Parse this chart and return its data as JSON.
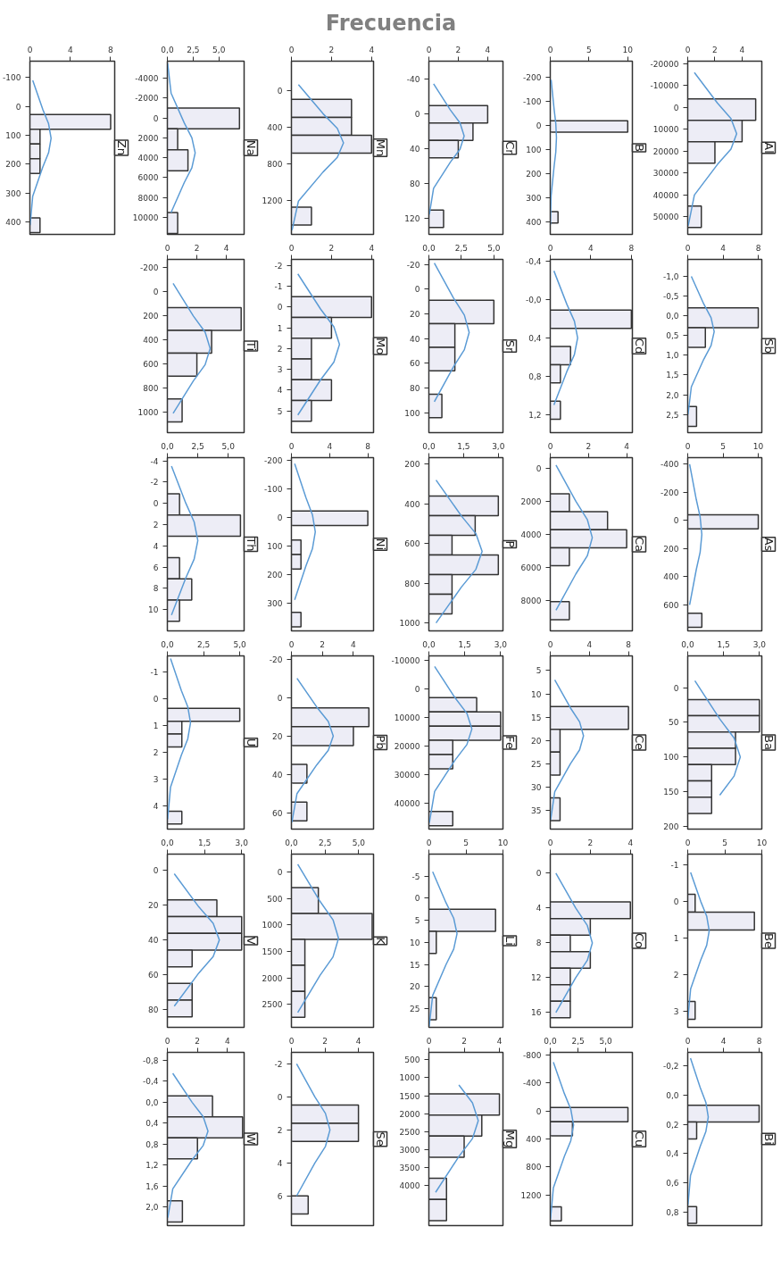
{
  "chart_data": [
    {
      "type": "other",
      "title": "Frecuencia"
    },
    {
      "type": "histogram",
      "orientation": "horizontal",
      "title": "Zn",
      "color": "#ededf6",
      "bins": [
        28,
        79,
        130,
        181,
        232,
        283,
        334,
        385,
        436
      ],
      "values": [
        8,
        1,
        1,
        1,
        0,
        0,
        0,
        1
      ],
      "xlim": [
        0,
        8.4
      ],
      "xticks": [
        0,
        4,
        8
      ],
      "ylim": [
        442,
        -156
      ],
      "yticks": [
        -100,
        0,
        100,
        200,
        300,
        400
      ],
      "series": [
        {
          "type": "line",
          "color": "#5b9bd5",
          "x": [
            -90,
            10,
            60,
            110,
            160,
            210,
            310,
            410
          ],
          "values": [
            0.28,
            1.27,
            1.85,
            2.1,
            1.85,
            1.27,
            0.28,
            0.02
          ]
        }
      ]
    },
    {
      "type": "histogram",
      "orientation": "horizontal",
      "title": "Na",
      "color": "#ededf6",
      "bins": [
        -1000,
        1100,
        3200,
        5300,
        7400,
        9500,
        11600
      ],
      "values": [
        7,
        1,
        2,
        0,
        0,
        1
      ],
      "xlim": [
        0,
        7.45
      ],
      "xticks": [
        {
          "value": 0,
          "label": "0,0"
        },
        {
          "value": 2.5,
          "label": "2,5"
        },
        {
          "value": 5,
          "label": "5,0"
        }
      ],
      "ylim": [
        11700,
        -5700
      ],
      "yticks": [
        -4000,
        -2000,
        0,
        2000,
        4000,
        6000,
        8000,
        10000
      ],
      "series": [
        {
          "type": "line",
          "color": "#5b9bd5",
          "x": [
            -5500,
            -2500,
            500,
            2000,
            3500,
            5000,
            6500,
            9500
          ],
          "values": [
            0.03,
            0.36,
            1.64,
            2.38,
            2.7,
            2.38,
            1.64,
            0.36
          ]
        }
      ]
    },
    {
      "type": "histogram",
      "orientation": "horizontal",
      "title": "Mn",
      "color": "#ededf6",
      "bins": [
        93,
        290,
        487,
        684,
        881,
        1078,
        1275,
        1472
      ],
      "values": [
        3,
        3,
        4,
        0,
        0,
        0,
        1
      ],
      "xlim": [
        0,
        4.1
      ],
      "xticks": [
        0,
        2,
        4
      ],
      "ylim": [
        1575,
        -327
      ],
      "yticks": [
        0,
        400,
        800,
        1200
      ],
      "series": [
        {
          "type": "line",
          "color": "#5b9bd5",
          "x": [
            -70,
            250,
            410,
            570,
            730,
            890,
            1210,
            1530
          ],
          "values": [
            0.35,
            1.58,
            2.29,
            2.6,
            2.29,
            1.58,
            0.35,
            0.03
          ]
        }
      ]
    },
    {
      "type": "histogram",
      "orientation": "horizontal",
      "title": "Cr",
      "color": "#ededf6",
      "bins": [
        -10,
        10,
        30,
        50,
        70,
        90,
        110,
        130
      ],
      "values": [
        4,
        3,
        2,
        0,
        0,
        0,
        1
      ],
      "xlim": [
        0,
        5.04
      ],
      "xticks": [
        0,
        2,
        4
      ],
      "ylim": [
        138,
        -61
      ],
      "yticks": [
        -40,
        0,
        40,
        80,
        120
      ],
      "series": [
        {
          "type": "line",
          "color": "#5b9bd5",
          "x": [
            -35,
            -5,
            10,
            25,
            40,
            55,
            85,
            115
          ],
          "values": [
            0.32,
            1.46,
            2.12,
            2.4,
            2.12,
            1.46,
            0.32,
            0.03
          ]
        }
      ]
    },
    {
      "type": "histogram",
      "orientation": "horizontal",
      "title": "B",
      "color": "#ededf6",
      "bins": [
        -20,
        27,
        74,
        121,
        168,
        215,
        262,
        309,
        356,
        403
      ],
      "values": [
        10,
        0,
        0,
        0,
        0,
        0,
        0,
        0,
        1
      ],
      "xlim": [
        0,
        10.6
      ],
      "xticks": [
        0,
        5,
        10
      ],
      "ylim": [
        450,
        -267
      ],
      "yticks": [
        -200,
        -100,
        0,
        100,
        200,
        300,
        400
      ],
      "series": [
        {
          "type": "line",
          "color": "#5b9bd5",
          "x": [
            -190,
            -70,
            -10,
            50,
            110,
            170,
            290,
            410
          ],
          "values": [
            0.11,
            0.49,
            0.71,
            0.8,
            0.71,
            0.49,
            0.11,
            0.01
          ]
        }
      ]
    },
    {
      "type": "histogram",
      "orientation": "horizontal",
      "title": "Al",
      "color": "#ededf6",
      "bins": [
        -4000,
        5800,
        15600,
        25400,
        35200,
        45000,
        54800
      ],
      "values": [
        5,
        4,
        2,
        0,
        0,
        1
      ],
      "xlim": [
        0,
        5.45
      ],
      "xticks": [
        0,
        2,
        4
      ],
      "ylim": [
        58000,
        -21200
      ],
      "yticks": [
        -20000,
        -10000,
        0,
        10000,
        20000,
        30000,
        40000,
        50000
      ],
      "series": [
        {
          "type": "line",
          "color": "#5b9bd5",
          "x": [
            -16000,
            -2000,
            5000,
            12000,
            19000,
            26000,
            40000,
            54000
          ],
          "values": [
            0.49,
            2.19,
            3.18,
            3.6,
            3.18,
            2.19,
            0.49,
            0.04
          ]
        }
      ]
    },
    {
      "type": "histogram",
      "orientation": "horizontal",
      "title": "Ti",
      "color": "#ededf6",
      "bins": [
        130,
        320,
        510,
        700,
        890,
        1080
      ],
      "values": [
        5,
        3,
        2,
        0,
        1
      ],
      "xlim": [
        0,
        5.2
      ],
      "xticks": [
        0,
        2,
        4
      ],
      "ylim": [
        1170,
        -270
      ],
      "yticks": [
        -200,
        0,
        200,
        400,
        600,
        800,
        1000
      ],
      "series": [
        {
          "type": "line",
          "color": "#5b9bd5",
          "x": [
            -70,
            200,
            335,
            470,
            605,
            740,
            1010
          ],
          "values": [
            0.39,
            1.76,
            2.56,
            2.9,
            2.56,
            1.76,
            0.39
          ]
        }
      ]
    },
    {
      "type": "histogram",
      "orientation": "horizontal",
      "title": "Mo",
      "color": "#ededf6",
      "bins": [
        -0.5,
        0.5,
        1.5,
        2.5,
        3.5,
        4.5,
        5.5
      ],
      "values": [
        4,
        2,
        1,
        1,
        2,
        1
      ],
      "xlim": [
        0,
        4.1
      ],
      "xticks": [
        0,
        2,
        4
      ],
      "ylim": [
        6.05,
        -2.3
      ],
      "yticks": [
        -2,
        -1,
        0,
        1,
        2,
        3,
        4,
        5
      ],
      "series": [
        {
          "type": "line",
          "color": "#5b9bd5",
          "x": [
            -1.6,
            0.1,
            0.95,
            1.8,
            2.65,
            3.5,
            5.2
          ],
          "values": [
            0.32,
            1.46,
            2.12,
            2.4,
            2.12,
            1.46,
            0.32
          ]
        }
      ]
    },
    {
      "type": "histogram",
      "orientation": "horizontal",
      "title": "Sr",
      "color": "#ededf6",
      "bins": [
        9,
        28,
        47,
        66,
        85,
        104
      ],
      "values": [
        5,
        2,
        2,
        0,
        1
      ],
      "xlim": [
        0,
        5.7
      ],
      "xticks": [
        {
          "value": 0,
          "label": "0,0"
        },
        {
          "value": 2.5,
          "label": "2,5"
        },
        {
          "value": 5,
          "label": "5,0"
        }
      ],
      "ylim": [
        116,
        -24
      ],
      "yticks": [
        -20,
        0,
        20,
        40,
        60,
        80,
        100
      ],
      "series": [
        {
          "type": "line",
          "color": "#5b9bd5",
          "x": [
            -21,
            7,
            21,
            35,
            49,
            63,
            91
          ],
          "values": [
            0.42,
            1.88,
            2.73,
            3.1,
            2.73,
            1.88,
            0.42
          ]
        }
      ]
    },
    {
      "type": "histogram",
      "orientation": "horizontal",
      "title": "Cd",
      "color": "#ededf6",
      "bins": [
        0.11,
        0.3,
        0.49,
        0.68,
        0.87,
        1.06,
        1.25
      ],
      "values": [
        8,
        0,
        2,
        1,
        0,
        1
      ],
      "xlim": [
        0,
        8.1
      ],
      "xticks": [
        0,
        4,
        8
      ],
      "ylim": [
        1.39,
        -0.42
      ],
      "yticks": [
        {
          "value": -0.4,
          "label": "-0,4"
        },
        {
          "value": 0,
          "label": "-0,0"
        },
        {
          "value": 0.4,
          "label": "0,4"
        },
        {
          "value": 0.8,
          "label": "0,8"
        },
        {
          "value": 1.2,
          "label": "1,2"
        }
      ],
      "series": [
        {
          "type": "line",
          "color": "#5b9bd5",
          "x": [
            -0.3,
            0.05,
            0.225,
            0.4,
            0.575,
            0.75,
            1.1
          ],
          "values": [
            0.36,
            1.64,
            2.38,
            2.7,
            2.38,
            1.64,
            0.36
          ]
        }
      ]
    },
    {
      "type": "histogram",
      "orientation": "horizontal",
      "title": "Sb",
      "color": "#ededf6",
      "bins": [
        -0.2,
        0.3,
        0.8,
        1.3,
        1.8,
        2.3,
        2.8
      ],
      "values": [
        8,
        2,
        0,
        0,
        0,
        1
      ],
      "xlim": [
        0,
        8.4
      ],
      "xticks": [
        0,
        4,
        8
      ],
      "ylim": [
        2.96,
        -1.43
      ],
      "yticks": [
        {
          "value": -1,
          "label": "-1,0"
        },
        {
          "value": -0.5,
          "label": "-0,5"
        },
        {
          "value": 0,
          "label": "0,0"
        },
        {
          "value": 0.5,
          "label": "0,5"
        },
        {
          "value": 1,
          "label": "1,0"
        },
        {
          "value": 1.5,
          "label": "1,5"
        },
        {
          "value": 2,
          "label": "2,0"
        },
        {
          "value": 2.5,
          "label": "2,5"
        }
      ],
      "series": [
        {
          "type": "line",
          "color": "#5b9bd5",
          "x": [
            -1.0,
            -0.3,
            0.05,
            0.4,
            0.75,
            1.1,
            1.8,
            2.5
          ],
          "values": [
            0.41,
            1.82,
            2.65,
            3,
            2.65,
            1.82,
            0.41,
            0.03
          ]
        }
      ]
    },
    {
      "type": "histogram",
      "orientation": "horizontal",
      "title": "Th",
      "color": "#ededf6",
      "bins": [
        -0.9,
        1.1,
        3.1,
        5.1,
        7.1,
        9.1,
        11.1
      ],
      "values": [
        1,
        6,
        0,
        1,
        2,
        1
      ],
      "xlim": [
        0,
        6.3
      ],
      "xticks": [
        {
          "value": 0,
          "label": "0,0"
        },
        {
          "value": 2.5,
          "label": "2,5"
        },
        {
          "value": 5,
          "label": "5,0"
        }
      ],
      "ylim": [
        12,
        -4.3
      ],
      "yticks": [
        -4,
        -2,
        0,
        2,
        4,
        6,
        8,
        10
      ],
      "series": [
        {
          "type": "line",
          "color": "#5b9bd5",
          "x": [
            -3.5,
            0,
            1.75,
            3.5,
            5.25,
            7,
            10.5
          ],
          "values": [
            0.34,
            1.52,
            2.2,
            2.5,
            2.2,
            1.52,
            0.34
          ]
        }
      ]
    },
    {
      "type": "histogram",
      "orientation": "horizontal",
      "title": "Ni",
      "color": "#ededf6",
      "bins": [
        -23,
        28,
        79,
        130,
        181,
        232,
        283,
        334,
        385
      ],
      "values": [
        8,
        0,
        1,
        1,
        0,
        0,
        0,
        1
      ],
      "xlim": [
        0,
        8.6
      ],
      "xticks": [
        0,
        4,
        8
      ],
      "ylim": [
        399,
        -211
      ],
      "yticks": [
        -200,
        -100,
        0,
        100,
        200,
        300
      ],
      "series": [
        {
          "type": "line",
          "color": "#5b9bd5",
          "x": [
            -190,
            -70,
            -10,
            50,
            110,
            170,
            290
          ],
          "values": [
            0.34,
            1.52,
            2.2,
            2.5,
            2.2,
            1.52,
            0.34
          ]
        }
      ]
    },
    {
      "type": "histogram",
      "orientation": "horizontal",
      "title": "P",
      "color": "#ededf6",
      "bins": [
        360,
        459,
        558,
        657,
        756,
        855,
        954
      ],
      "values": [
        3,
        2,
        1,
        3,
        1,
        1
      ],
      "xlim": [
        0,
        3.2
      ],
      "xticks": [
        {
          "value": 0,
          "label": "0,0"
        },
        {
          "value": 1.5,
          "label": "1,5"
        },
        {
          "value": 3,
          "label": "3,0"
        }
      ],
      "ylim": [
        1040,
        167
      ],
      "yticks": [
        200,
        400,
        600,
        800,
        1000
      ],
      "series": [
        {
          "type": "line",
          "color": "#5b9bd5",
          "x": [
            280,
            460,
            550,
            640,
            730,
            820,
            1000
          ],
          "values": [
            0.31,
            1.4,
            2.03,
            2.3,
            2.03,
            1.4,
            0.31
          ]
        }
      ]
    },
    {
      "type": "histogram",
      "orientation": "horizontal",
      "title": "Ca",
      "color": "#ededf6",
      "bins": [
        1540,
        2630,
        3720,
        4810,
        5900,
        6990,
        8080,
        9170
      ],
      "values": [
        1,
        3,
        4,
        1,
        0,
        0,
        1
      ],
      "xlim": [
        0,
        4.3
      ],
      "xticks": [
        0,
        2,
        4
      ],
      "ylim": [
        9850,
        -650
      ],
      "yticks": [
        0,
        2000,
        4000,
        6000,
        8000
      ],
      "series": [
        {
          "type": "line",
          "color": "#5b9bd5",
          "x": [
            -200,
            2000,
            3100,
            4200,
            5300,
            6400,
            8600
          ],
          "values": [
            0.3,
            1.34,
            1.94,
            2.2,
            1.94,
            1.34,
            0.3
          ]
        }
      ]
    },
    {
      "type": "histogram",
      "orientation": "horizontal",
      "title": "As",
      "color": "#ededf6",
      "bins": [
        -40,
        60,
        160,
        260,
        360,
        460,
        560,
        660,
        760
      ],
      "values": [
        10,
        0,
        0,
        0,
        0,
        0,
        0,
        2
      ],
      "xlim": [
        0,
        10.5
      ],
      "xticks": [
        0,
        5,
        10
      ],
      "ylim": [
        785,
        -447
      ],
      "yticks": [
        -400,
        -200,
        0,
        200,
        400,
        600
      ],
      "series": [
        {
          "type": "line",
          "color": "#5b9bd5",
          "x": [
            -400,
            -150,
            -25,
            100,
            225,
            350,
            600
          ],
          "values": [
            0.27,
            1.21,
            1.76,
            2,
            1.76,
            1.21,
            0.27
          ]
        }
      ]
    },
    {
      "type": "histogram",
      "orientation": "horizontal",
      "title": "U",
      "color": "#ededf6",
      "bins": [
        0.36,
        0.84,
        1.32,
        1.8,
        2.28,
        2.76,
        3.24,
        3.72,
        4.2,
        4.68
      ],
      "values": [
        5,
        1,
        1,
        0,
        0,
        0,
        0,
        0,
        1
      ],
      "xlim": [
        0,
        5.3
      ],
      "xticks": [
        {
          "value": 0,
          "label": "0,0"
        },
        {
          "value": 2.5,
          "label": "2,5"
        },
        {
          "value": 5,
          "label": "5,0"
        }
      ],
      "ylim": [
        4.87,
        -1.6
      ],
      "yticks": [
        -1,
        0,
        1,
        2,
        3,
        4
      ],
      "series": [
        {
          "type": "line",
          "color": "#5b9bd5",
          "x": [
            -1.5,
            -0.3,
            0.3,
            0.9,
            1.5,
            2.1,
            3.3,
            4.5
          ],
          "values": [
            0.22,
            0.97,
            1.41,
            1.6,
            1.41,
            0.97,
            0.22,
            0.02
          ]
        }
      ]
    },
    {
      "type": "histogram",
      "orientation": "horizontal",
      "title": "Pb",
      "color": "#ededf6",
      "bins": [
        5.4,
        15.2,
        25,
        34.8,
        44.6,
        54.4,
        64.2
      ],
      "values": [
        5,
        4,
        0,
        1,
        0,
        1
      ],
      "xlim": [
        0,
        5.3
      ],
      "xticks": [
        0,
        2,
        4
      ],
      "ylim": [
        68.5,
        -21.7
      ],
      "yticks": [
        -20,
        0,
        20,
        40,
        60
      ],
      "series": [
        {
          "type": "line",
          "color": "#5b9bd5",
          "x": [
            -10,
            5,
            12.5,
            20,
            27.5,
            35,
            50,
            65
          ],
          "values": [
            0.36,
            1.64,
            2.38,
            2.7,
            2.38,
            1.64,
            0.36,
            0.03
          ]
        }
      ]
    },
    {
      "type": "histogram",
      "orientation": "horizontal",
      "title": "Fe",
      "color": "#ededf6",
      "bins": [
        3000,
        8000,
        13000,
        18000,
        23000,
        28000,
        33000,
        38000,
        43000,
        48000
      ],
      "values": [
        2,
        3,
        3,
        1,
        1,
        0,
        0,
        0,
        1
      ],
      "xlim": [
        0,
        3.1
      ],
      "xticks": [
        {
          "value": 0,
          "label": "0,0"
        },
        {
          "value": 1.5,
          "label": "1,5"
        },
        {
          "value": 3,
          "label": "3,0"
        }
      ],
      "ylim": [
        49200,
        -11700
      ],
      "yticks": [
        -10000,
        0,
        10000,
        20000,
        30000,
        40000
      ],
      "series": [
        {
          "type": "line",
          "color": "#5b9bd5",
          "x": [
            -8000,
            3000,
            8500,
            14000,
            19500,
            25000,
            36000,
            47000
          ],
          "values": [
            0.24,
            1.09,
            1.59,
            1.8,
            1.59,
            1.09,
            0.24,
            0.02
          ]
        }
      ]
    },
    {
      "type": "histogram",
      "orientation": "horizontal",
      "title": "Ce",
      "color": "#ededf6",
      "bins": [
        12.7,
        17.6,
        22.5,
        27.4,
        32.3,
        37.2
      ],
      "values": [
        8,
        1,
        1,
        0,
        1
      ],
      "xlim": [
        0,
        8.4
      ],
      "xticks": [
        0,
        4,
        8
      ],
      "ylim": [
        39,
        1.85
      ],
      "yticks": [
        5,
        10,
        15,
        20,
        25,
        30,
        35
      ],
      "series": [
        {
          "type": "line",
          "color": "#5b9bd5",
          "x": [
            7,
            13,
            16,
            19,
            22,
            25,
            31,
            37
          ],
          "values": [
            0.46,
            2.06,
            3.0,
            3.4,
            3.0,
            2.06,
            0.46,
            0.04
          ]
        }
      ]
    },
    {
      "type": "histogram",
      "orientation": "horizontal",
      "title": "Ba",
      "color": "#ededf6",
      "bins": [
        17,
        40.5,
        64,
        87.5,
        111,
        134.5,
        158,
        181.5
      ],
      "values": [
        3,
        3,
        2,
        2,
        1,
        1,
        1
      ],
      "xlim": [
        0,
        3.1
      ],
      "xticks": [
        {
          "value": 0,
          "label": "0,0"
        },
        {
          "value": 1.5,
          "label": "1,5"
        },
        {
          "value": 3,
          "label": "3,0"
        }
      ],
      "ylim": [
        204,
        -46
      ],
      "yticks": [
        0,
        50,
        100,
        150,
        200
      ],
      "series": [
        {
          "type": "line",
          "color": "#5b9bd5",
          "x": [
            -10,
            45,
            72.5,
            100,
            127.5,
            155
          ],
          "values": [
            0.3,
            1.34,
            1.94,
            2.2,
            1.94,
            1.34
          ]
        }
      ]
    },
    {
      "type": "histogram",
      "orientation": "horizontal",
      "title": "V",
      "color": "#ededf6",
      "bins": [
        17,
        26.6,
        36.2,
        45.8,
        55.4,
        65,
        74.6,
        84.2
      ],
      "values": [
        2,
        3,
        3,
        1,
        0,
        1,
        1
      ],
      "xlim": [
        0,
        3.1
      ],
      "xticks": [
        {
          "value": 0,
          "label": "0,0"
        },
        {
          "value": 1.5,
          "label": "1,5"
        },
        {
          "value": 3,
          "label": "3,0"
        }
      ],
      "ylim": [
        90.2,
        -9.3
      ],
      "yticks": [
        0,
        20,
        40,
        60,
        80
      ],
      "series": [
        {
          "type": "line",
          "color": "#5b9bd5",
          "x": [
            2,
            21,
            30.5,
            40,
            49.5,
            59,
            78
          ],
          "values": [
            0.28,
            1.27,
            1.85,
            2.1,
            1.85,
            1.27,
            0.28
          ]
        }
      ]
    },
    {
      "type": "histogram",
      "orientation": "horizontal",
      "title": "K",
      "color": "#ededf6",
      "bins": [
        290,
        780,
        1270,
        1760,
        2250,
        2740
      ],
      "values": [
        2,
        6,
        1,
        1,
        1
      ],
      "xlim": [
        0,
        6.1
      ],
      "xticks": [
        {
          "value": 0,
          "label": "0,0"
        },
        {
          "value": 2.5,
          "label": "2,5"
        },
        {
          "value": 5,
          "label": "5,0"
        }
      ],
      "ylim": [
        2930,
        -340
      ],
      "yticks": [
        0,
        500,
        1000,
        1500,
        2000,
        2500
      ],
      "series": [
        {
          "type": "line",
          "color": "#5b9bd5",
          "x": [
            -150,
            550,
            900,
            1250,
            1600,
            1950,
            2650
          ],
          "values": [
            0.47,
            2.12,
            3.09,
            3.5,
            3.09,
            2.12,
            0.47
          ]
        }
      ]
    },
    {
      "type": "histogram",
      "orientation": "horizontal",
      "title": "Li",
      "color": "#ededf6",
      "bins": [
        2.5,
        7.5,
        12.5,
        17.5,
        22.5,
        27.5
      ],
      "values": [
        9,
        1,
        0,
        0,
        1
      ],
      "xlim": [
        0,
        10
      ],
      "xticks": [
        0,
        5,
        10
      ],
      "ylim": [
        29.2,
        -10
      ],
      "yticks": [
        -5,
        0,
        5,
        10,
        15,
        20,
        25
      ],
      "series": [
        {
          "type": "line",
          "color": "#5b9bd5",
          "x": [
            -6,
            1,
            4.5,
            8,
            11.5,
            15,
            22,
            29
          ],
          "values": [
            0.51,
            2.31,
            3.35,
            3.8,
            3.35,
            2.31,
            0.51,
            0.04
          ]
        }
      ]
    },
    {
      "type": "histogram",
      "orientation": "horizontal",
      "title": "Co",
      "color": "#ededf6",
      "bins": [
        3.3,
        5.2,
        7.1,
        9.0,
        10.9,
        12.8,
        14.7,
        16.6
      ],
      "values": [
        4,
        2,
        1,
        2,
        1,
        1,
        1
      ],
      "xlim": [
        0,
        4.1
      ],
      "xticks": [
        0,
        2,
        4
      ],
      "ylim": [
        17.7,
        -2.2
      ],
      "yticks": [
        0,
        4,
        8,
        12,
        16
      ],
      "series": [
        {
          "type": "line",
          "color": "#5b9bd5",
          "x": [
            0,
            4,
            6,
            8,
            10,
            12,
            16
          ],
          "values": [
            0.28,
            1.27,
            1.85,
            2.1,
            1.85,
            1.27,
            0.28
          ]
        }
      ]
    },
    {
      "type": "histogram",
      "orientation": "horizontal",
      "title": "Be",
      "color": "#ededf6",
      "bins": [
        -0.2,
        0.29,
        0.78,
        1.27,
        1.76,
        2.25,
        2.74,
        3.23
      ],
      "values": [
        1,
        9,
        0,
        0,
        0,
        0,
        1
      ],
      "xlim": [
        0,
        10
      ],
      "xticks": [
        0,
        5,
        10
      ],
      "ylim": [
        3.45,
        -1.3
      ],
      "yticks": [
        -1,
        0,
        1,
        2,
        3
      ],
      "series": [
        {
          "type": "line",
          "color": "#5b9bd5",
          "x": [
            -0.8,
            0,
            0.4,
            0.8,
            1.2,
            1.6,
            2.4,
            3.2
          ],
          "values": [
            0.39,
            1.76,
            2.56,
            2.9,
            2.56,
            1.76,
            0.39,
            0.03
          ]
        }
      ]
    },
    {
      "type": "histogram",
      "orientation": "horizontal",
      "title": "W",
      "color": "#ededf6",
      "bins": [
        -0.12,
        0.28,
        0.68,
        1.08,
        1.48,
        1.88,
        2.28
      ],
      "values": [
        3,
        5,
        2,
        0,
        0,
        1
      ],
      "xlim": [
        0,
        5.1
      ],
      "xticks": [
        0,
        2,
        4
      ],
      "ylim": [
        2.35,
        -0.95
      ],
      "yticks": [
        {
          "value": -0.8,
          "label": "-0,8"
        },
        {
          "value": -0.4,
          "label": "-0,4"
        },
        {
          "value": 0,
          "label": "0,0"
        },
        {
          "value": 0.4,
          "label": "0,4"
        },
        {
          "value": 0.8,
          "label": "0,8"
        },
        {
          "value": 1.2,
          "label": "1,2"
        },
        {
          "value": 1.6,
          "label": "1,6"
        },
        {
          "value": 2,
          "label": "2,0"
        }
      ],
      "series": [
        {
          "type": "line",
          "color": "#5b9bd5",
          "x": [
            -0.55,
            0,
            0.275,
            0.55,
            0.825,
            1.1,
            1.65,
            2.2
          ],
          "values": [
            0.36,
            1.64,
            2.38,
            2.7,
            2.38,
            1.64,
            0.36,
            0.03
          ]
        }
      ]
    },
    {
      "type": "histogram",
      "orientation": "horizontal",
      "title": "Se",
      "color": "#ededf6",
      "bins": [
        0.5,
        1.6,
        2.7,
        3.8,
        4.9,
        6.0,
        7.1
      ],
      "values": [
        4,
        4,
        0,
        0,
        0,
        1
      ],
      "xlim": [
        0,
        4.9
      ],
      "xticks": [
        0,
        2,
        4
      ],
      "ylim": [
        7.8,
        -2.7
      ],
      "yticks": [
        -2,
        0,
        2,
        4,
        6
      ],
      "series": [
        {
          "type": "line",
          "color": "#5b9bd5",
          "x": [
            -2,
            0,
            1,
            2,
            3,
            4,
            6
          ],
          "values": [
            0.31,
            1.4,
            2.03,
            2.3,
            2.03,
            1.4,
            0.31
          ]
        }
      ]
    },
    {
      "type": "histogram",
      "orientation": "horizontal",
      "title": "Mg",
      "color": "#ededf6",
      "bins": [
        1450,
        2040,
        2630,
        3220,
        3810,
        4400,
        4990
      ],
      "values": [
        4,
        3,
        2,
        0,
        1,
        1
      ],
      "xlim": [
        0,
        4.2
      ],
      "xticks": [
        0,
        2,
        4
      ],
      "ylim": [
        5130,
        290
      ],
      "yticks": [
        500,
        1000,
        1500,
        2000,
        2500,
        3000,
        3500,
        4000
      ],
      "series": [
        {
          "type": "line",
          "color": "#5b9bd5",
          "x": [
            1200,
            1700,
            2200,
            2700,
            3200,
            4200
          ],
          "values": [
            1.7,
            2.47,
            2.8,
            2.47,
            1.7,
            0.38
          ]
        }
      ]
    },
    {
      "type": "histogram",
      "orientation": "horizontal",
      "title": "Cu",
      "color": "#ededf6",
      "bins": [
        -50,
        153,
        356,
        559,
        762,
        965,
        1168,
        1371,
        1574
      ],
      "values": [
        7,
        2,
        0,
        0,
        0,
        0,
        0,
        1
      ],
      "xlim": [
        0,
        7.4
      ],
      "xticks": [
        {
          "value": 0,
          "label": "0,0"
        },
        {
          "value": 2.5,
          "label": "2,5"
        },
        {
          "value": 5,
          "label": "5,0"
        }
      ],
      "ylim": [
        1640,
        -840
      ],
      "yticks": [
        -800,
        -400,
        0,
        400,
        800,
        1200
      ],
      "series": [
        {
          "type": "line",
          "color": "#5b9bd5",
          "x": [
            -700,
            -250,
            -25,
            200,
            425,
            650,
            1100,
            1550
          ],
          "values": [
            0.28,
            1.27,
            1.85,
            2.1,
            1.85,
            1.27,
            0.28,
            0.02
          ]
        }
      ]
    },
    {
      "type": "histogram",
      "orientation": "horizontal",
      "title": "Bi",
      "color": "#ededf6",
      "bins": [
        0.07,
        0.185,
        0.3,
        0.415,
        0.53,
        0.645,
        0.76,
        0.875
      ],
      "values": [
        8,
        1,
        0,
        0,
        0,
        0,
        1
      ],
      "xlim": [
        0,
        8.3
      ],
      "xticks": [
        0,
        4,
        8
      ],
      "ylim": [
        0.89,
        -0.29
      ],
      "yticks": [
        {
          "value": -0.2,
          "label": "-0,2"
        },
        {
          "value": 0,
          "label": "0,0"
        },
        {
          "value": 0.2,
          "label": "0,2"
        },
        {
          "value": 0.4,
          "label": "0,4"
        },
        {
          "value": 0.6,
          "label": "0,6"
        },
        {
          "value": 0.8,
          "label": "0,8"
        }
      ],
      "series": [
        {
          "type": "line",
          "color": "#5b9bd5",
          "x": [
            -0.25,
            -0.05,
            0.05,
            0.15,
            0.25,
            0.35,
            0.55,
            0.75
          ],
          "values": [
            0.31,
            1.4,
            2.03,
            2.3,
            2.03,
            1.4,
            0.31,
            0.03
          ]
        }
      ]
    }
  ]
}
